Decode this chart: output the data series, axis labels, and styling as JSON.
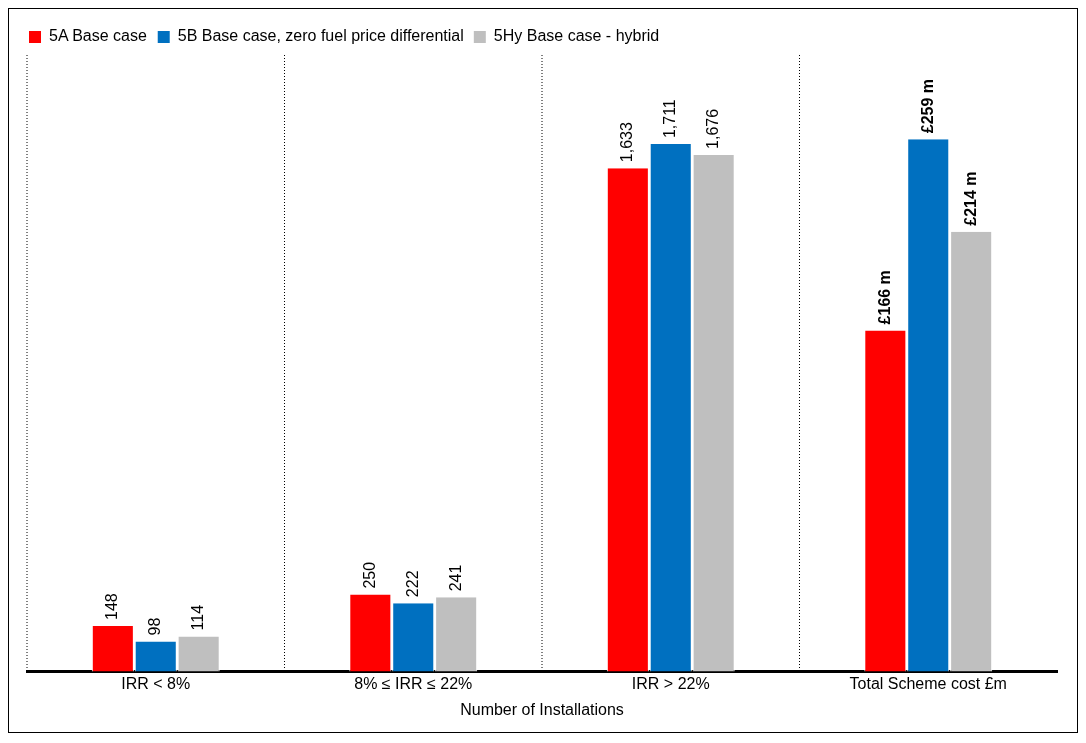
{
  "chart_data": {
    "type": "bar",
    "xlabel": "Number of Installations",
    "categories": [
      "IRR < 8%",
      "8% ≤ IRR ≤ 22%",
      "IRR > 22%",
      "Total Scheme cost £m"
    ],
    "series": [
      {
        "name": "5A Base case",
        "color": "#ff0000",
        "values": [
          148,
          250,
          1633,
          null
        ],
        "value_labels": [
          "148",
          "250",
          "1,633",
          null
        ]
      },
      {
        "name": "5B Base case, zero fuel price differential",
        "color": "#0070c0",
        "values": [
          98,
          222,
          1711,
          null
        ],
        "value_labels": [
          "98",
          "222",
          "1,711",
          null
        ]
      },
      {
        "name": "5Hy Base case - hybrid",
        "color": "#bfbfbf",
        "values": [
          114,
          241,
          1676,
          null
        ],
        "value_labels": [
          "114",
          "241",
          "1,676",
          null
        ]
      },
      {
        "color": "#ff0000",
        "axis": "y2",
        "values": [
          null,
          null,
          null,
          166
        ],
        "value_labels": [
          null,
          null,
          null,
          "£166 m"
        ]
      },
      {
        "color": "#0070c0",
        "axis": "y2",
        "values": [
          null,
          null,
          null,
          259
        ],
        "value_labels": [
          null,
          null,
          null,
          "£259 m"
        ]
      },
      {
        "color": "#bfbfbf",
        "axis": "y2",
        "values": [
          null,
          null,
          null,
          214
        ],
        "value_labels": [
          null,
          null,
          null,
          "£214 m"
        ]
      }
    ],
    "grid": "x",
    "line_style": "dotted",
    "legend": "top left",
    "tick_labels": "x"
  }
}
